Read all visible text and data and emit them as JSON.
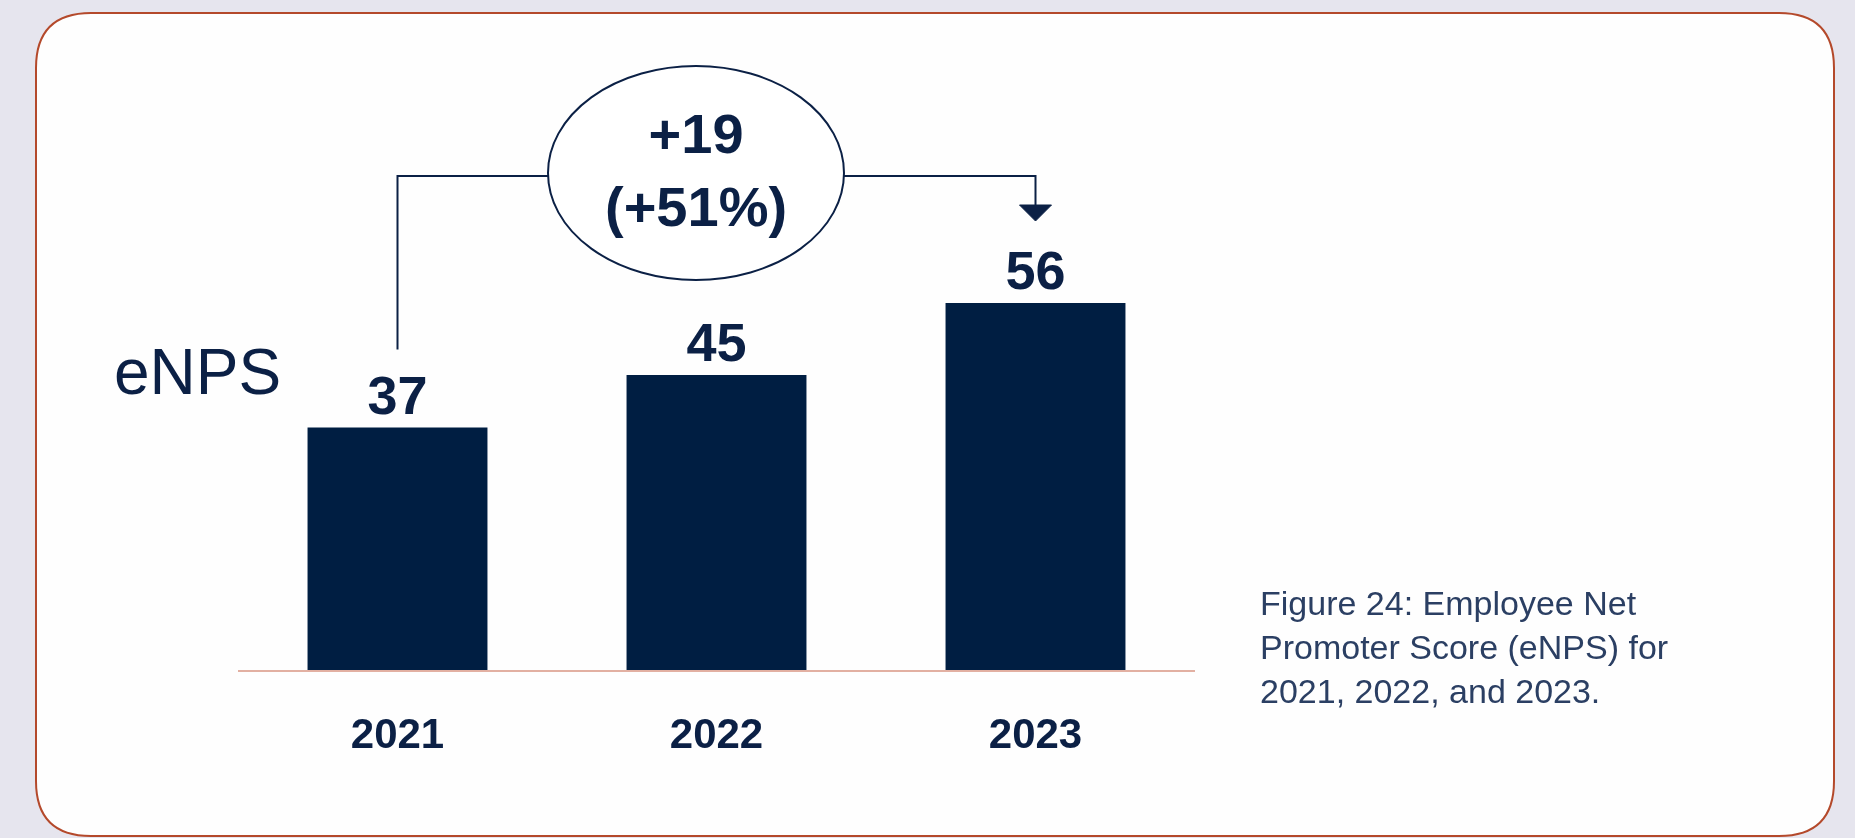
{
  "chart_data": {
    "type": "bar",
    "categories": [
      "2021",
      "2022",
      "2023"
    ],
    "values": [
      37,
      45,
      56
    ],
    "color": "#001e42",
    "data_labels": true,
    "tick_labels": "x",
    "ylabel": "eNPS",
    "annotations": [
      "+19\n(+51%)",
      "Figure 24: Employee Net Promoter Score (eNPS) for 2021, 2022, and 2023."
    ]
  }
}
